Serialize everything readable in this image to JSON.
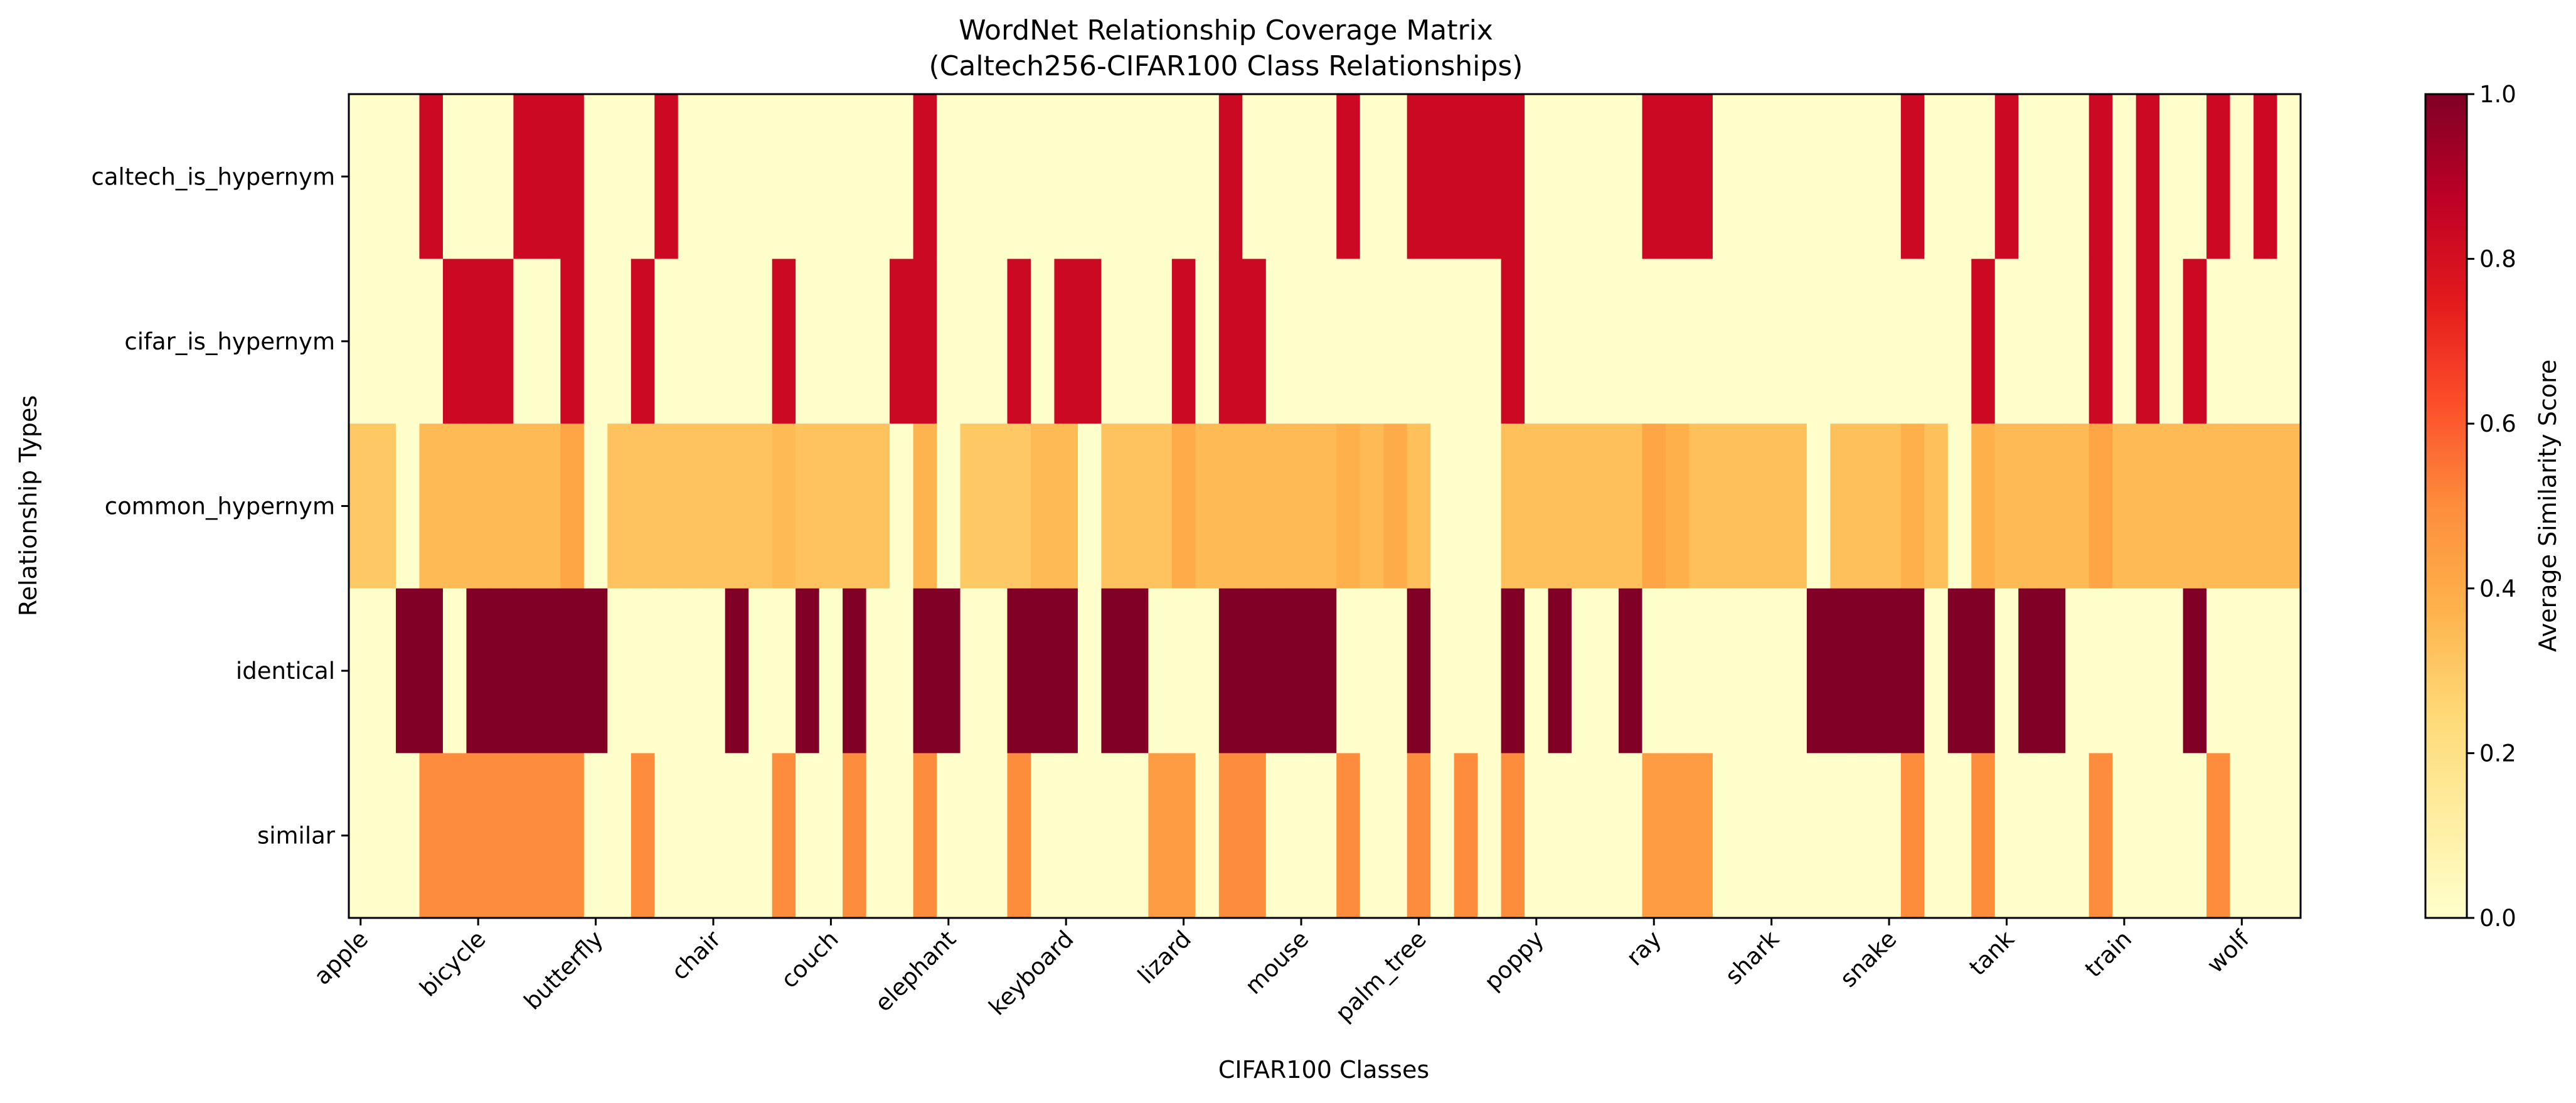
{
  "chart_data": {
    "type": "heatmap",
    "title": "WordNet Relationship Coverage Matrix",
    "subtitle": "(Caltech256-CIFAR100 Class Relationships)",
    "xlabel": "CIFAR100 Classes",
    "ylabel": "Relationship Types",
    "rows": [
      "caltech_is_hypernym",
      "cifar_is_hypernym",
      "common_hypernym",
      "identical",
      "similar"
    ],
    "x_tick_labels": [
      "apple",
      "bicycle",
      "butterfly",
      "chair",
      "couch",
      "elephant",
      "keyboard",
      "lizard",
      "mouse",
      "palm_tree",
      "poppy",
      "ray",
      "shark",
      "snake",
      "tank",
      "train",
      "wolf"
    ],
    "x_tick_every": 5,
    "num_columns": 83,
    "values": {
      "caltech_is_hypernym": {
        "default": 0.0,
        "ranges": [
          [
            3,
            3,
            0.83
          ],
          [
            7,
            9,
            0.83
          ],
          [
            13,
            13,
            0.83
          ],
          [
            24,
            24,
            0.83
          ],
          [
            37,
            37,
            0.83
          ],
          [
            42,
            42,
            0.83
          ],
          [
            45,
            49,
            0.83
          ],
          [
            55,
            57,
            0.83
          ],
          [
            66,
            66,
            0.83
          ],
          [
            70,
            70,
            0.83
          ],
          [
            74,
            74,
            0.83
          ],
          [
            76,
            76,
            0.83
          ],
          [
            79,
            79,
            0.83
          ],
          [
            81,
            81,
            0.83
          ]
        ]
      },
      "cifar_is_hypernym": {
        "default": 0.0,
        "ranges": [
          [
            4,
            6,
            0.83
          ],
          [
            9,
            9,
            0.83
          ],
          [
            12,
            12,
            0.83
          ],
          [
            18,
            18,
            0.83
          ],
          [
            23,
            24,
            0.83
          ],
          [
            28,
            28,
            0.83
          ],
          [
            30,
            31,
            0.83
          ],
          [
            35,
            35,
            0.83
          ],
          [
            37,
            38,
            0.83
          ],
          [
            49,
            49,
            0.83
          ],
          [
            69,
            69,
            0.83
          ],
          [
            74,
            74,
            0.83
          ],
          [
            76,
            76,
            0.83
          ],
          [
            78,
            78,
            0.83
          ]
        ]
      },
      "common_hypernym": {
        "default": 0.33,
        "ranges": [
          [
            0,
            1,
            0.3
          ],
          [
            2,
            2,
            0.0
          ],
          [
            3,
            8,
            0.35
          ],
          [
            9,
            9,
            0.42
          ],
          [
            10,
            10,
            0.0
          ],
          [
            11,
            17,
            0.32
          ],
          [
            18,
            18,
            0.35
          ],
          [
            19,
            22,
            0.32
          ],
          [
            23,
            23,
            0.0
          ],
          [
            24,
            24,
            0.37
          ],
          [
            25,
            25,
            0.0
          ],
          [
            26,
            28,
            0.3
          ],
          [
            29,
            30,
            0.35
          ],
          [
            31,
            31,
            0.0
          ],
          [
            32,
            34,
            0.32
          ],
          [
            35,
            35,
            0.4
          ],
          [
            36,
            41,
            0.35
          ],
          [
            42,
            42,
            0.38
          ],
          [
            43,
            43,
            0.35
          ],
          [
            44,
            44,
            0.4
          ],
          [
            45,
            45,
            0.33
          ],
          [
            46,
            48,
            0.0
          ],
          [
            49,
            55,
            0.33
          ],
          [
            55,
            55,
            0.42
          ],
          [
            56,
            56,
            0.38
          ],
          [
            57,
            61,
            0.33
          ],
          [
            62,
            62,
            0.0
          ],
          [
            63,
            66,
            0.33
          ],
          [
            66,
            66,
            0.38
          ],
          [
            67,
            67,
            0.33
          ],
          [
            68,
            68,
            0.0
          ],
          [
            69,
            69,
            0.38
          ],
          [
            70,
            73,
            0.35
          ],
          [
            74,
            74,
            0.42
          ],
          [
            75,
            79,
            0.35
          ],
          [
            80,
            82,
            0.35
          ]
        ]
      },
      "identical": {
        "default": 0.0,
        "ranges": [
          [
            2,
            3,
            1.0
          ],
          [
            5,
            10,
            1.0
          ],
          [
            16,
            16,
            1.0
          ],
          [
            19,
            19,
            1.0
          ],
          [
            21,
            21,
            1.0
          ],
          [
            24,
            25,
            1.0
          ],
          [
            28,
            30,
            1.0
          ],
          [
            32,
            33,
            1.0
          ],
          [
            37,
            41,
            1.0
          ],
          [
            45,
            45,
            1.0
          ],
          [
            49,
            49,
            1.0
          ],
          [
            51,
            51,
            1.0
          ],
          [
            54,
            54,
            1.0
          ],
          [
            62,
            66,
            1.0
          ],
          [
            68,
            69,
            1.0
          ],
          [
            71,
            72,
            1.0
          ],
          [
            78,
            78,
            1.0
          ]
        ]
      },
      "similar": {
        "default": 0.0,
        "ranges": [
          [
            3,
            9,
            0.5
          ],
          [
            12,
            12,
            0.5
          ],
          [
            18,
            18,
            0.5
          ],
          [
            21,
            21,
            0.5
          ],
          [
            24,
            24,
            0.5
          ],
          [
            28,
            28,
            0.5
          ],
          [
            34,
            35,
            0.45
          ],
          [
            37,
            38,
            0.5
          ],
          [
            42,
            42,
            0.5
          ],
          [
            45,
            45,
            0.5
          ],
          [
            47,
            47,
            0.5
          ],
          [
            49,
            49,
            0.5
          ],
          [
            55,
            57,
            0.45
          ],
          [
            66,
            66,
            0.5
          ],
          [
            69,
            69,
            0.5
          ],
          [
            74,
            74,
            0.5
          ],
          [
            79,
            79,
            0.5
          ]
        ]
      }
    },
    "colorbar": {
      "label": "Average Similarity Score",
      "min": 0.0,
      "max": 1.0,
      "ticks": [
        "0.0",
        "0.2",
        "0.4",
        "0.6",
        "0.8",
        "1.0"
      ],
      "colormap": "YlOrRd"
    }
  }
}
